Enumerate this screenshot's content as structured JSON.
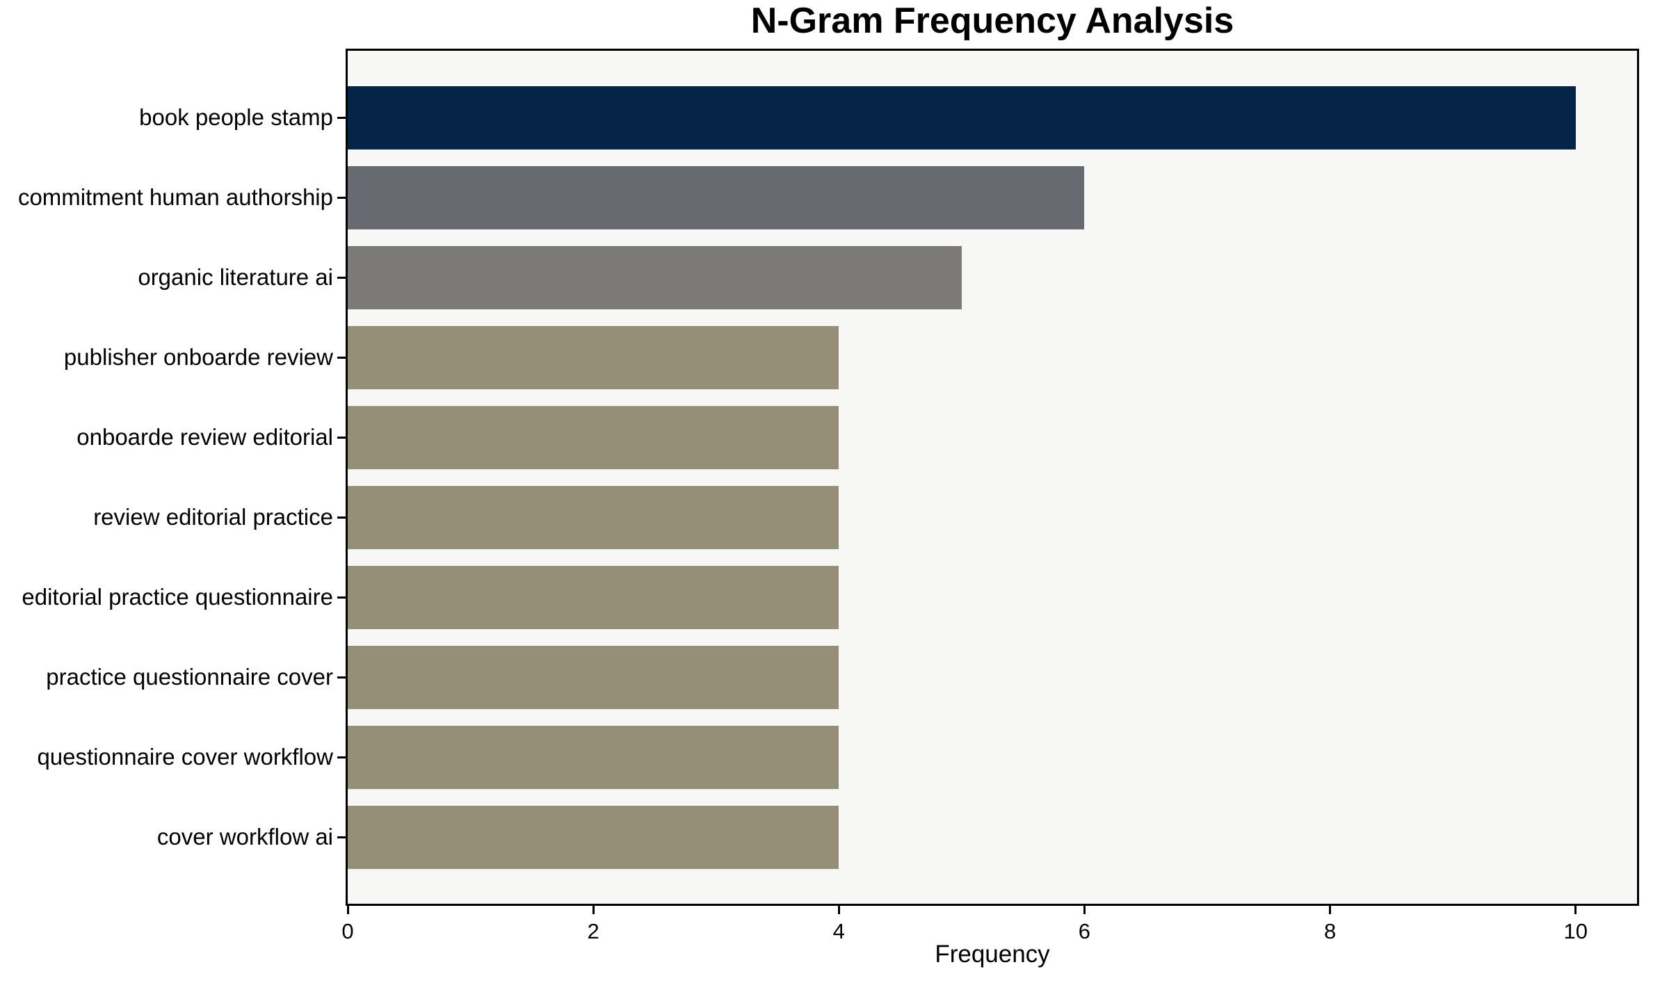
{
  "chart_data": {
    "type": "bar",
    "orientation": "horizontal",
    "title": "N-Gram Frequency Analysis",
    "xlabel": "Frequency",
    "ylabel": "",
    "categories": [
      "book people stamp",
      "commitment human authorship",
      "organic literature ai",
      "publisher onboarde review",
      "onboarde review editorial",
      "review editorial practice",
      "editorial practice questionnaire",
      "practice questionnaire cover",
      "questionnaire cover workflow",
      "cover workflow ai"
    ],
    "values": [
      10,
      6,
      5,
      4,
      4,
      4,
      4,
      4,
      4,
      4
    ],
    "bar_colors": [
      "#062348",
      "#676a71",
      "#7b7a76",
      "#948f76",
      "#948f76",
      "#948f76",
      "#948f76",
      "#948f76",
      "#948f76",
      "#948f76"
    ],
    "xlim": [
      0,
      10.5
    ],
    "xticks": [
      0,
      2,
      4,
      6,
      8,
      10
    ],
    "grid": false,
    "legend": null,
    "plot_background": "#f7f7f6",
    "figure_background": "#ffffff",
    "axis_color": "#000000"
  }
}
